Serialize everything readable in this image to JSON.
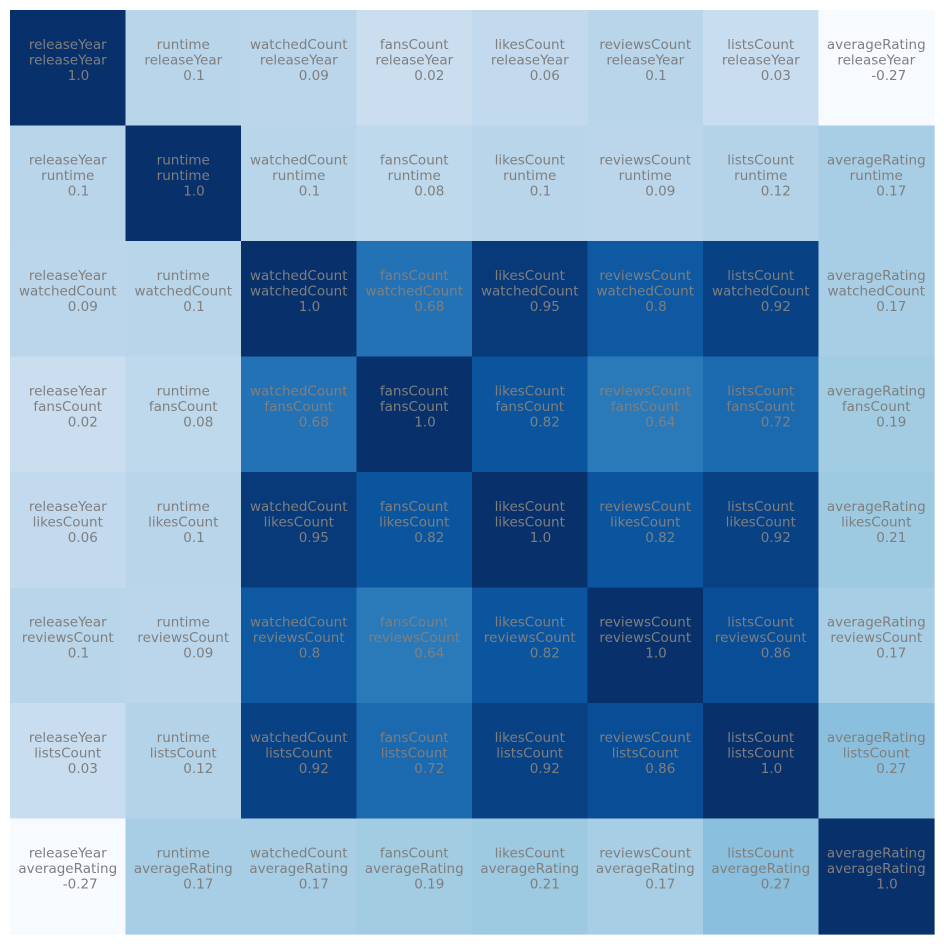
{
  "chart_data": {
    "type": "heatmap",
    "title": "",
    "xlabel": "",
    "ylabel": "",
    "variables": [
      "releaseYear",
      "runtime",
      "watchedCount",
      "fansCount",
      "likesCount",
      "reviewsCount",
      "listsCount",
      "averageRating"
    ],
    "values": [
      [
        "1.0",
        "0.1",
        "0.09",
        "0.02",
        "0.06",
        "0.1",
        "0.03",
        "-0.27"
      ],
      [
        "0.1",
        "1.0",
        "0.1",
        "0.08",
        "0.1",
        "0.09",
        "0.12",
        "0.17"
      ],
      [
        "0.09",
        "0.1",
        "1.0",
        "0.68",
        "0.95",
        "0.8",
        "0.92",
        "0.17"
      ],
      [
        "0.02",
        "0.08",
        "0.68",
        "1.0",
        "0.82",
        "0.64",
        "0.72",
        "0.19"
      ],
      [
        "0.06",
        "0.1",
        "0.95",
        "0.82",
        "1.0",
        "0.82",
        "0.92",
        "0.21"
      ],
      [
        "0.1",
        "0.09",
        "0.8",
        "0.64",
        "0.82",
        "1.0",
        "0.86",
        "0.17"
      ],
      [
        "0.03",
        "0.12",
        "0.92",
        "0.72",
        "0.92",
        "0.86",
        "1.0",
        "0.27"
      ],
      [
        "-0.27",
        "0.17",
        "0.17",
        "0.19",
        "0.21",
        "0.17",
        "0.27",
        "1.0"
      ]
    ],
    "colormap": "Blues",
    "value_range": [
      -0.27,
      1.0
    ],
    "grid": false,
    "legend": "none",
    "label_color": "#7f7f7f"
  }
}
